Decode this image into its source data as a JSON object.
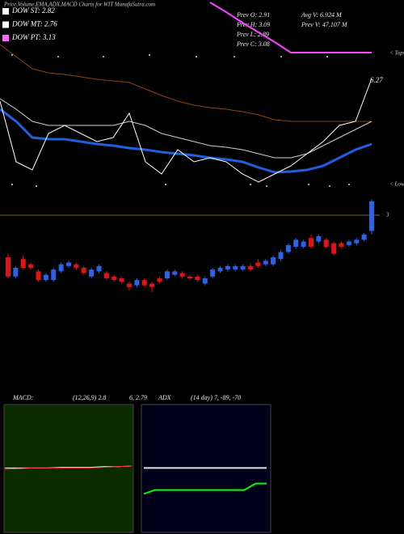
{
  "header": {
    "title": "Price,Volume,EMA,ADX,MACD Charts for WIT MunafaSutra.com"
  },
  "legend": [
    {
      "label": "DOW ST: 2.82",
      "color": "#ffffff"
    },
    {
      "label": "DOW MT: 2.76",
      "color": "#ffffff"
    },
    {
      "label": "DOW PT: 3.13",
      "color": "#ff66ff"
    }
  ],
  "info": [
    "Prev  O: 2.91",
    "Avg V: 6.924  M",
    "Prev  H: 3.09",
    "Prev  V: 47.107 M",
    "Prev  L: 2.89",
    "Prev  C: 3.08"
  ],
  "side_labels": [
    "< Tops",
    "< Lows"
  ],
  "last_price_label": "6.27",
  "price_panel": {
    "type": "line",
    "ylim": [
      0,
      260
    ],
    "series": [
      {
        "color": "#8b4513",
        "width": 1,
        "values": [
          205,
          190,
          175,
          170,
          168,
          165,
          162,
          160,
          158,
          150,
          142,
          135,
          130,
          127,
          125,
          122,
          118,
          112,
          110,
          110,
          110,
          110,
          110,
          110
        ]
      },
      {
        "color": "#d0d0d0",
        "width": 1,
        "values": [
          138,
          125,
          110,
          105,
          105,
          105,
          105,
          105,
          110,
          105,
          95,
          90,
          85,
          80,
          78,
          75,
          70,
          65,
          65,
          70,
          80,
          90,
          100,
          110
        ]
      },
      {
        "color": "#1f5fe0",
        "width": 3,
        "values": [
          125,
          110,
          90,
          88,
          88,
          85,
          82,
          80,
          77,
          75,
          72,
          70,
          68,
          65,
          63,
          60,
          53,
          47,
          48,
          50,
          55,
          65,
          75,
          82
        ]
      },
      {
        "color": "#ffffff",
        "width": 1,
        "values": [
          135,
          60,
          50,
          95,
          105,
          95,
          85,
          90,
          120,
          60,
          45,
          75,
          60,
          65,
          60,
          45,
          35,
          45,
          55,
          70,
          85,
          105,
          110,
          163
        ]
      },
      {
        "color": "#ff44ff",
        "width": 2,
        "values": [
          null,
          null,
          null,
          null,
          null,
          null,
          null,
          null,
          null,
          null,
          null,
          null,
          null,
          257,
          245,
          232,
          220,
          208,
          195,
          195,
          195,
          195,
          195,
          195
        ]
      }
    ]
  },
  "chart_data": {
    "type": "candlestick",
    "ylim": [
      2.52,
      3.12
    ],
    "yticks": [
      3
    ],
    "up_color": "#2a62e8",
    "down_color": "#e01414",
    "line_color": "#7a6a10",
    "open": [
      2.76,
      2.65,
      2.75,
      2.72,
      2.68,
      2.63,
      2.63,
      2.68,
      2.71,
      2.72,
      2.7,
      2.65,
      2.68,
      2.67,
      2.65,
      2.64,
      2.61,
      2.6,
      2.63,
      2.61,
      2.64,
      2.64,
      2.66,
      2.67,
      2.65,
      2.65,
      2.61,
      2.65,
      2.68,
      2.69,
      2.69,
      2.69,
      2.71,
      2.73,
      2.72,
      2.72,
      2.75,
      2.79,
      2.82,
      2.82,
      2.87,
      2.85,
      2.86,
      2.84,
      2.84,
      2.83,
      2.84,
      2.86,
      2.91
    ],
    "high": [
      2.78,
      2.71,
      2.77,
      2.73,
      2.69,
      2.67,
      2.7,
      2.73,
      2.74,
      2.73,
      2.71,
      2.7,
      2.72,
      2.68,
      2.66,
      2.65,
      2.62,
      2.64,
      2.64,
      2.62,
      2.65,
      2.69,
      2.69,
      2.68,
      2.66,
      2.66,
      2.65,
      2.7,
      2.71,
      2.72,
      2.72,
      2.72,
      2.72,
      2.75,
      2.75,
      2.77,
      2.8,
      2.84,
      2.87,
      2.86,
      2.89,
      2.89,
      2.87,
      2.85,
      2.85,
      2.86,
      2.87,
      2.9,
      3.09
    ],
    "low": [
      2.64,
      2.64,
      2.69,
      2.69,
      2.62,
      2.62,
      2.62,
      2.67,
      2.7,
      2.69,
      2.66,
      2.64,
      2.67,
      2.63,
      2.62,
      2.61,
      2.57,
      2.59,
      2.59,
      2.56,
      2.61,
      2.63,
      2.65,
      2.64,
      2.63,
      2.62,
      2.6,
      2.64,
      2.67,
      2.68,
      2.68,
      2.68,
      2.68,
      2.7,
      2.71,
      2.71,
      2.74,
      2.78,
      2.81,
      2.81,
      2.81,
      2.84,
      2.81,
      2.77,
      2.81,
      2.82,
      2.83,
      2.85,
      2.89
    ],
    "close": [
      2.65,
      2.7,
      2.7,
      2.7,
      2.63,
      2.66,
      2.69,
      2.72,
      2.73,
      2.7,
      2.67,
      2.69,
      2.71,
      2.64,
      2.63,
      2.62,
      2.59,
      2.63,
      2.6,
      2.59,
      2.62,
      2.68,
      2.68,
      2.65,
      2.64,
      2.63,
      2.64,
      2.69,
      2.7,
      2.71,
      2.71,
      2.71,
      2.69,
      2.71,
      2.74,
      2.76,
      2.79,
      2.83,
      2.86,
      2.85,
      2.82,
      2.88,
      2.82,
      2.78,
      2.82,
      2.85,
      2.86,
      2.89,
      3.08
    ]
  },
  "macd_panel": {
    "label": "MACD:",
    "params": "(12,26,9) 2.8",
    "values_text": "6, 2.79",
    "ylim": [
      0,
      100
    ],
    "series": [
      {
        "color": "#ffffff",
        "width": 1,
        "values": [
          51,
          51,
          51,
          51,
          51.5,
          51.5,
          51.5,
          52,
          52,
          52.5
        ]
      },
      {
        "color": "#ff3030",
        "width": 1,
        "values": [
          50,
          50.5,
          51,
          51,
          51,
          51,
          51,
          51.5,
          52,
          52.5
        ]
      }
    ]
  },
  "adx_panel": {
    "label": "ADX",
    "params": "(14 day) 7, -89, -70",
    "ylim": [
      0,
      100
    ],
    "series": [
      {
        "color": "#e0e0e0",
        "width": 2,
        "values": [
          51,
          51,
          51,
          51,
          51,
          51,
          51,
          51,
          51,
          51,
          51,
          51
        ]
      },
      {
        "color": "#00ff00",
        "width": 2,
        "values": [
          31,
          34,
          34,
          34,
          34,
          34,
          34,
          34,
          34,
          34,
          39,
          39
        ]
      }
    ]
  }
}
